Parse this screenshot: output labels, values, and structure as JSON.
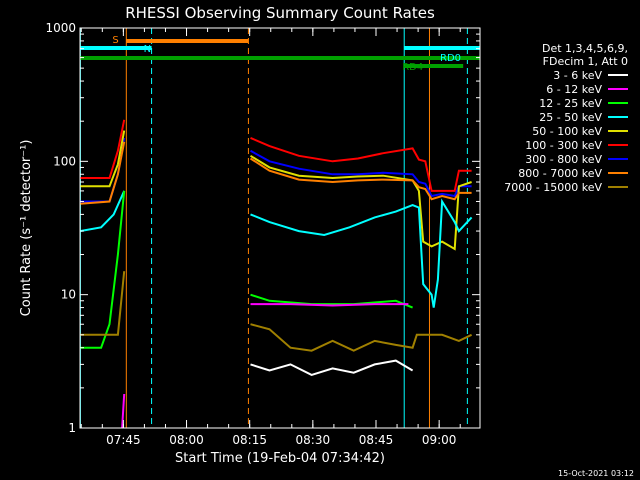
{
  "chart_data": {
    "type": "line",
    "title": "RHESSI Observing Summary Count Rates",
    "xlabel": "Start Time (19-Feb-04 07:34:42)",
    "ylabel": "Count Rate (s⁻¹ detector⁻¹)",
    "yscale": "log",
    "ylim": [
      1,
      1000
    ],
    "xlim_minutes": [
      0,
      95
    ],
    "x_ticks": [
      {
        "label": "07:45",
        "min": 10.3
      },
      {
        "label": "08:00",
        "min": 25.3
      },
      {
        "label": "08:15",
        "min": 40.3
      },
      {
        "label": "08:30",
        "min": 55.3
      },
      {
        "label": "08:45",
        "min": 70.3
      },
      {
        "label": "09:00",
        "min": 85.3
      }
    ],
    "y_ticks": [
      {
        "label": "1",
        "value": 1
      },
      {
        "label": "10",
        "value": 10
      },
      {
        "label": "100",
        "value": 100
      },
      {
        "label": "1000",
        "value": 1000
      }
    ],
    "legend_header": [
      "Det 1,3,4,5,6,9,",
      "FDecim 1, Att 0"
    ],
    "legend": [
      {
        "label": "3 - 6 keV",
        "color": "#ffffff"
      },
      {
        "label": "6 - 12 keV",
        "color": "#ff00ff"
      },
      {
        "label": "12 - 25 keV",
        "color": "#00ff00"
      },
      {
        "label": "25 - 50 keV",
        "color": "#00ffff"
      },
      {
        "label": "50 - 100 keV",
        "color": "#e0e000"
      },
      {
        "label": "100 - 300 keV",
        "color": "#ff0000"
      },
      {
        "label": "300 - 800 keV",
        "color": "#0000ff"
      },
      {
        "label": "800 - 7000 keV",
        "color": "#ff8000"
      },
      {
        "label": "7000 - 15000 keV",
        "color": "#a08000"
      }
    ],
    "series": [
      {
        "name": "100 - 300 keV",
        "color": "#ff0000",
        "points": [
          [
            0,
            75
          ],
          [
            7,
            75
          ],
          [
            9,
            120
          ],
          [
            10.5,
            205
          ],
          [
            40,
            null
          ],
          [
            40.5,
            150
          ],
          [
            45,
            130
          ],
          [
            52,
            110
          ],
          [
            60,
            100
          ],
          [
            66,
            105
          ],
          [
            72,
            115
          ],
          [
            79,
            125
          ],
          [
            80.5,
            103
          ],
          [
            82,
            100
          ],
          [
            83.5,
            60
          ],
          [
            86,
            60
          ],
          [
            89,
            60
          ],
          [
            90,
            85
          ],
          [
            93,
            85
          ]
        ]
      },
      {
        "name": "300 - 800 keV",
        "color": "#0000ff",
        "points": [
          [
            0,
            50
          ],
          [
            7,
            50
          ],
          [
            9,
            80
          ],
          [
            10.5,
            150
          ],
          [
            40,
            null
          ],
          [
            40.5,
            120
          ],
          [
            45,
            100
          ],
          [
            52,
            88
          ],
          [
            60,
            80
          ],
          [
            66,
            80
          ],
          [
            72,
            82
          ],
          [
            79,
            80
          ],
          [
            80.5,
            70
          ],
          [
            82,
            68
          ],
          [
            83.5,
            55
          ],
          [
            86,
            57
          ],
          [
            89,
            55
          ],
          [
            90,
            65
          ],
          [
            93,
            65
          ]
        ]
      },
      {
        "name": "50 - 100 keV",
        "color": "#e0e000",
        "points": [
          [
            0,
            65
          ],
          [
            7,
            65
          ],
          [
            9,
            95
          ],
          [
            10.5,
            170
          ],
          [
            40,
            null
          ],
          [
            40.5,
            110
          ],
          [
            45,
            90
          ],
          [
            52,
            78
          ],
          [
            60,
            75
          ],
          [
            66,
            77
          ],
          [
            72,
            78
          ],
          [
            79,
            72
          ],
          [
            80.5,
            60
          ],
          [
            81.5,
            25
          ],
          [
            83.5,
            23
          ],
          [
            86,
            25
          ],
          [
            89,
            22
          ],
          [
            90,
            65
          ],
          [
            93,
            70
          ]
        ]
      },
      {
        "name": "800 - 7000 keV",
        "color": "#ff8000",
        "points": [
          [
            0,
            48
          ],
          [
            7,
            50
          ],
          [
            9,
            80
          ],
          [
            10.5,
            140
          ],
          [
            40,
            null
          ],
          [
            40.5,
            105
          ],
          [
            45,
            85
          ],
          [
            52,
            73
          ],
          [
            60,
            70
          ],
          [
            66,
            72
          ],
          [
            72,
            73
          ],
          [
            79,
            72
          ],
          [
            80.5,
            64
          ],
          [
            82,
            62
          ],
          [
            83.5,
            52
          ],
          [
            86,
            55
          ],
          [
            89,
            52
          ],
          [
            90,
            58
          ],
          [
            93,
            58
          ]
        ]
      },
      {
        "name": "25 - 50 keV",
        "color": "#00ffff",
        "points": [
          [
            0,
            30
          ],
          [
            5,
            32
          ],
          [
            8,
            40
          ],
          [
            10.5,
            60
          ],
          [
            40,
            null
          ],
          [
            40.5,
            40
          ],
          [
            45,
            35
          ],
          [
            52,
            30
          ],
          [
            58,
            28
          ],
          [
            64,
            32
          ],
          [
            70,
            38
          ],
          [
            75,
            42
          ],
          [
            79,
            47
          ],
          [
            80.5,
            45
          ],
          [
            81.5,
            12
          ],
          [
            83.5,
            10
          ],
          [
            84,
            8
          ],
          [
            85,
            13
          ],
          [
            86,
            50
          ],
          [
            89,
            35
          ],
          [
            90,
            30
          ],
          [
            93,
            38
          ]
        ]
      },
      {
        "name": "12 - 25 keV",
        "color": "#00ff00",
        "points": [
          [
            0,
            4
          ],
          [
            5,
            4
          ],
          [
            7,
            6
          ],
          [
            9,
            20
          ],
          [
            10.5,
            60
          ],
          [
            40,
            null
          ],
          [
            40.5,
            10
          ],
          [
            45,
            9
          ],
          [
            55,
            8.5
          ],
          [
            65,
            8.5
          ],
          [
            75,
            9
          ],
          [
            79,
            8
          ],
          [
            80,
            null
          ]
        ]
      },
      {
        "name": "6 - 12 keV",
        "color": "#ff00ff",
        "points": [
          [
            40.5,
            8.5
          ],
          [
            50,
            8.5
          ],
          [
            60,
            8.3
          ],
          [
            70,
            8.5
          ],
          [
            78,
            8.5
          ],
          [
            79,
            null
          ],
          [
            10,
            1
          ],
          [
            10.5,
            1.8
          ]
        ]
      },
      {
        "name": "7000 - 15000 keV",
        "color": "#a08000",
        "points": [
          [
            0,
            5
          ],
          [
            7,
            5
          ],
          [
            9,
            5
          ],
          [
            10.5,
            15
          ],
          [
            40,
            null
          ],
          [
            40.5,
            6
          ],
          [
            45,
            5.5
          ],
          [
            50,
            4
          ],
          [
            55,
            3.8
          ],
          [
            60,
            4.5
          ],
          [
            65,
            3.8
          ],
          [
            70,
            4.5
          ],
          [
            75,
            4.2
          ],
          [
            79,
            4
          ],
          [
            80,
            5
          ],
          [
            86,
            5
          ],
          [
            90,
            4.5
          ],
          [
            93,
            5
          ]
        ]
      },
      {
        "name": "3 - 6 keV",
        "color": "#ffffff",
        "points": [
          [
            40.5,
            3
          ],
          [
            45,
            2.7
          ],
          [
            50,
            3
          ],
          [
            55,
            2.5
          ],
          [
            60,
            2.8
          ],
          [
            65,
            2.6
          ],
          [
            70,
            3
          ],
          [
            75,
            3.2
          ],
          [
            79,
            2.7
          ]
        ]
      }
    ],
    "bars": [
      {
        "label": "S",
        "color": "#ff8000",
        "start": 11,
        "end": 40,
        "level": 1
      },
      {
        "label": "N",
        "color": "#00ffff",
        "start": -1,
        "end": 17,
        "level": 2
      },
      {
        "label": "",
        "color": "#00a000",
        "start": -1,
        "end": 95,
        "level": 3
      },
      {
        "label": "RD0",
        "color": "#00ffff",
        "start": 77,
        "end": 95,
        "level": 2
      },
      {
        "label": "RD4",
        "color": "#00a000",
        "start": 77,
        "end": 91,
        "level": 4
      }
    ],
    "markers": [
      {
        "min": 0.1,
        "color": "#00ffff",
        "style": "solid"
      },
      {
        "min": 11,
        "color": "#ff8000",
        "style": "solid"
      },
      {
        "min": 17,
        "color": "#00ffff",
        "style": "dashed"
      },
      {
        "min": 40,
        "color": "#ff8000",
        "style": "dashed"
      },
      {
        "min": 77,
        "color": "#00ffff",
        "style": "solid"
      },
      {
        "min": 83,
        "color": "#ff8000",
        "style": "solid"
      },
      {
        "min": 92,
        "color": "#00ffff",
        "style": "dashed"
      }
    ]
  },
  "timestamp": "15-Oct-2021 03:12"
}
